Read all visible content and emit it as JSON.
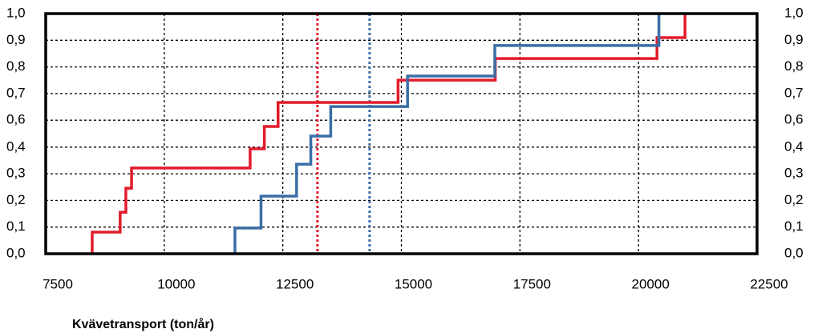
{
  "chart_data": {
    "type": "step",
    "x_label": "Kvävetransport (ton/år)",
    "xlim": [
      7500,
      22500
    ],
    "xticks": [
      7500,
      10000,
      12500,
      15000,
      17500,
      20000,
      22500
    ],
    "ylim": [
      0,
      1
    ],
    "yticks": [
      {
        "value": 0,
        "label": "0,0"
      },
      {
        "value": 0.111,
        "label": "0,1"
      },
      {
        "value": 0.222,
        "label": "0,2"
      },
      {
        "value": 0.333,
        "label": "0,3"
      },
      {
        "value": 0.444,
        "label": "0,4"
      },
      {
        "value": 0.556,
        "label": "0,6"
      },
      {
        "value": 0.667,
        "label": "0,7"
      },
      {
        "value": 0.778,
        "label": "0,8"
      },
      {
        "value": 0.889,
        "label": "0,9"
      },
      {
        "value": 1,
        "label": "1,0"
      }
    ],
    "grid": true,
    "series": [
      {
        "color": "#e31b2c",
        "x": [
          8480,
          9070,
          9190,
          9310,
          11810,
          12110,
          12400,
          14930,
          16980,
          20390,
          20980
        ],
        "values": [
          0.09,
          0.173,
          0.273,
          0.357,
          0.437,
          0.53,
          0.63,
          0.723,
          0.813,
          0.9,
          1.0
        ]
      },
      {
        "color": "#3a6ea5",
        "x": [
          11490,
          12040,
          12790,
          13090,
          13510,
          15130,
          16970,
          20430
        ],
        "values": [
          0.107,
          0.24,
          0.373,
          0.49,
          0.613,
          0.74,
          0.867,
          1.0
        ]
      }
    ],
    "vlines": [
      {
        "x": 13230,
        "color": "#e31b2c"
      },
      {
        "x": 14330,
        "color": "#3a6ea5"
      }
    ]
  }
}
